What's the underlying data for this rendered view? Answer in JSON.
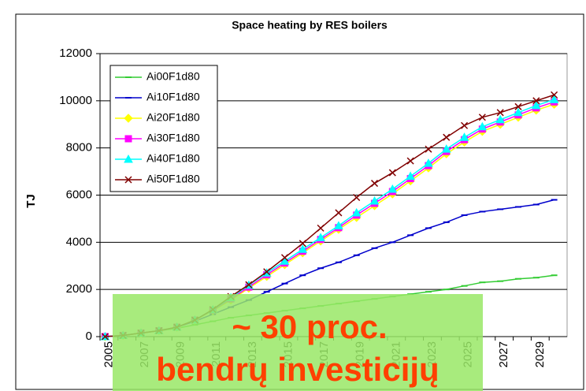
{
  "chart_data": {
    "type": "line",
    "title": "Space heating by RES boilers",
    "ylabel": "TJ",
    "categories": [
      "2005",
      null,
      "2007",
      null,
      "2009",
      null,
      "2011",
      null,
      "2013",
      null,
      "2015",
      null,
      "2017",
      null,
      "2019",
      null,
      "2021",
      null,
      "2023",
      null,
      "2025",
      null,
      "2027",
      null,
      "2029",
      null
    ],
    "ylim": [
      0,
      12000
    ],
    "yticks": [
      0,
      2000,
      4000,
      6000,
      8000,
      10000,
      12000
    ],
    "grid": true,
    "legend": "upper left",
    "series": [
      {
        "name": "Ai00F1d80",
        "color": "#33cc33",
        "marker": "dash",
        "values": [
          0,
          50,
          150,
          250,
          350,
          500,
          650,
          800,
          900,
          1000,
          1100,
          1200,
          1300,
          1400,
          1500,
          1600,
          1700,
          1800,
          1900,
          2000,
          2150,
          2300,
          2350,
          2450,
          2500,
          2600
        ]
      },
      {
        "name": "Ai10F1d80",
        "color": "#0000cc",
        "marker": "dash",
        "values": [
          0,
          50,
          150,
          250,
          400,
          650,
          950,
          1250,
          1550,
          1900,
          2250,
          2600,
          2900,
          3150,
          3450,
          3750,
          4000,
          4300,
          4600,
          4850,
          5150,
          5300,
          5400,
          5500,
          5600,
          5800
        ]
      },
      {
        "name": "Ai20F1d80",
        "color": "#ffff00",
        "marker": "diamond",
        "values": [
          0,
          50,
          150,
          250,
          400,
          700,
          1100,
          1550,
          2050,
          2550,
          3050,
          3550,
          4050,
          4550,
          5050,
          5550,
          6050,
          6600,
          7150,
          7750,
          8250,
          8700,
          9000,
          9300,
          9600,
          9850
        ]
      },
      {
        "name": "Ai30F1d80",
        "color": "#ff00ff",
        "marker": "square",
        "values": [
          0,
          50,
          150,
          250,
          400,
          700,
          1120,
          1600,
          2100,
          2620,
          3120,
          3620,
          4120,
          4620,
          5150,
          5650,
          6150,
          6700,
          7250,
          7850,
          8350,
          8800,
          9100,
          9400,
          9700,
          9950
        ]
      },
      {
        "name": "Ai40F1d80",
        "color": "#00ffff",
        "marker": "triangle",
        "values": [
          0,
          50,
          150,
          250,
          400,
          700,
          1140,
          1650,
          2180,
          2700,
          3200,
          3700,
          4200,
          4700,
          5250,
          5750,
          6250,
          6800,
          7350,
          7950,
          8450,
          8900,
          9200,
          9500,
          9800,
          10050
        ]
      },
      {
        "name": "Ai50F1d80",
        "color": "#800000",
        "marker": "x",
        "values": [
          0,
          50,
          150,
          250,
          400,
          700,
          1150,
          1700,
          2200,
          2750,
          3350,
          3950,
          4600,
          5250,
          5900,
          6500,
          6950,
          7450,
          7950,
          8450,
          8950,
          9300,
          9500,
          9750,
          10000,
          10250
        ]
      }
    ],
    "annotations": [
      "~ 30 proc.",
      "bendrų investicijų"
    ]
  }
}
